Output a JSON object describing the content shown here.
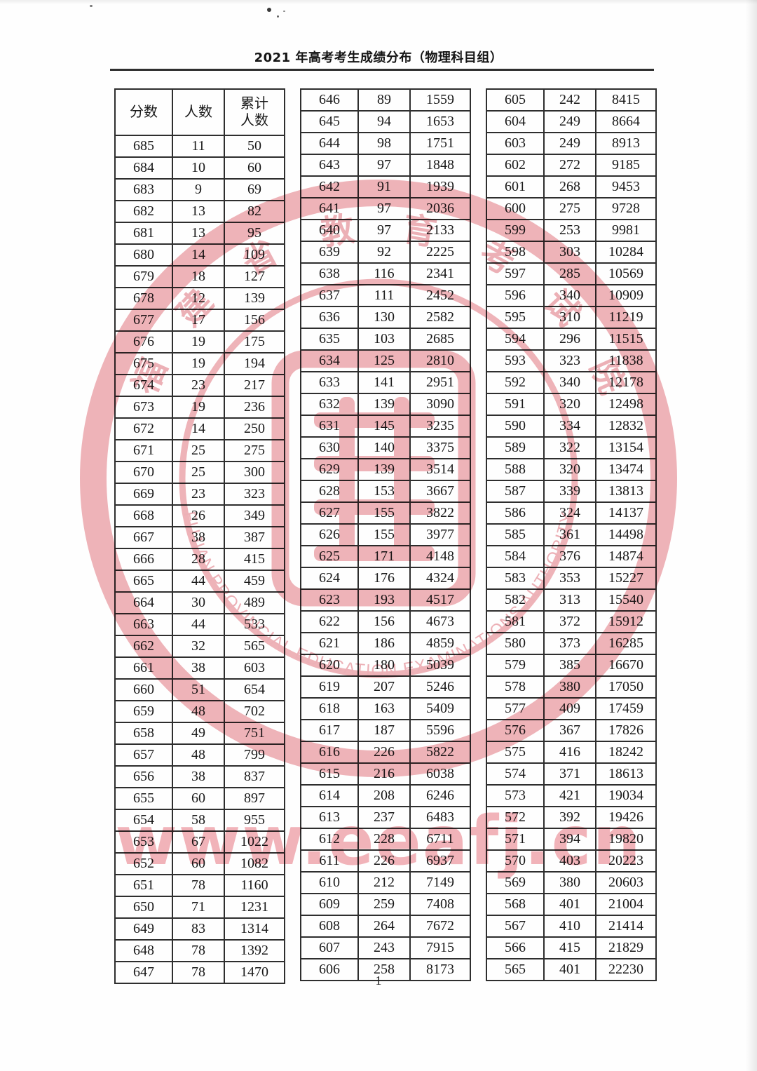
{
  "document": {
    "title": "2021 年高考考生成绩分布（物理科目组）",
    "page_number": "1",
    "watermark": {
      "seal_chinese": "福建省教育考试院",
      "seal_english": "FUJIAN PROVINCIAL EDUCATION EXAMINATIONS AUTHORITY",
      "url_text": "www.eeafj.cn",
      "seal_color": "#edaab0",
      "url_color": "#ee9aa3"
    }
  },
  "table_headers": [
    "分数",
    "人数",
    "累计\n人数"
  ],
  "tables": [
    {
      "rows": [
        [
          685,
          11,
          50
        ],
        [
          684,
          10,
          60
        ],
        [
          683,
          9,
          69
        ],
        [
          682,
          13,
          82
        ],
        [
          681,
          13,
          95
        ],
        [
          680,
          14,
          109
        ],
        [
          679,
          18,
          127
        ],
        [
          678,
          12,
          139
        ],
        [
          677,
          17,
          156
        ],
        [
          676,
          19,
          175
        ],
        [
          675,
          19,
          194
        ],
        [
          674,
          23,
          217
        ],
        [
          673,
          19,
          236
        ],
        [
          672,
          14,
          250
        ],
        [
          671,
          25,
          275
        ],
        [
          670,
          25,
          300
        ],
        [
          669,
          23,
          323
        ],
        [
          668,
          26,
          349
        ],
        [
          667,
          38,
          387
        ],
        [
          666,
          28,
          415
        ],
        [
          665,
          44,
          459
        ],
        [
          664,
          30,
          489
        ],
        [
          663,
          44,
          533
        ],
        [
          662,
          32,
          565
        ],
        [
          661,
          38,
          603
        ],
        [
          660,
          51,
          654
        ],
        [
          659,
          48,
          702
        ],
        [
          658,
          49,
          751
        ],
        [
          657,
          48,
          799
        ],
        [
          656,
          38,
          837
        ],
        [
          655,
          60,
          897
        ],
        [
          654,
          58,
          955
        ],
        [
          653,
          67,
          1022
        ],
        [
          652,
          60,
          1082
        ],
        [
          651,
          78,
          1160
        ],
        [
          650,
          71,
          1231
        ],
        [
          649,
          83,
          1314
        ],
        [
          648,
          78,
          1392
        ],
        [
          647,
          78,
          1470
        ]
      ]
    },
    {
      "rows": [
        [
          646,
          89,
          1559
        ],
        [
          645,
          94,
          1653
        ],
        [
          644,
          98,
          1751
        ],
        [
          643,
          97,
          1848
        ],
        [
          642,
          91,
          1939
        ],
        [
          641,
          97,
          2036
        ],
        [
          640,
          97,
          2133
        ],
        [
          639,
          92,
          2225
        ],
        [
          638,
          116,
          2341
        ],
        [
          637,
          111,
          2452
        ],
        [
          636,
          130,
          2582
        ],
        [
          635,
          103,
          2685
        ],
        [
          634,
          125,
          2810
        ],
        [
          633,
          141,
          2951
        ],
        [
          632,
          139,
          3090
        ],
        [
          631,
          145,
          3235
        ],
        [
          630,
          140,
          3375
        ],
        [
          629,
          139,
          3514
        ],
        [
          628,
          153,
          3667
        ],
        [
          627,
          155,
          3822
        ],
        [
          626,
          155,
          3977
        ],
        [
          625,
          171,
          4148
        ],
        [
          624,
          176,
          4324
        ],
        [
          623,
          193,
          4517
        ],
        [
          622,
          156,
          4673
        ],
        [
          621,
          186,
          4859
        ],
        [
          620,
          180,
          5039
        ],
        [
          619,
          207,
          5246
        ],
        [
          618,
          163,
          5409
        ],
        [
          617,
          187,
          5596
        ],
        [
          616,
          226,
          5822
        ],
        [
          615,
          216,
          6038
        ],
        [
          614,
          208,
          6246
        ],
        [
          613,
          237,
          6483
        ],
        [
          612,
          228,
          6711
        ],
        [
          611,
          226,
          6937
        ],
        [
          610,
          212,
          7149
        ],
        [
          609,
          259,
          7408
        ],
        [
          608,
          264,
          7672
        ],
        [
          607,
          243,
          7915
        ],
        [
          606,
          258,
          8173
        ]
      ]
    },
    {
      "rows": [
        [
          605,
          242,
          8415
        ],
        [
          604,
          249,
          8664
        ],
        [
          603,
          249,
          8913
        ],
        [
          602,
          272,
          9185
        ],
        [
          601,
          268,
          9453
        ],
        [
          600,
          275,
          9728
        ],
        [
          599,
          253,
          9981
        ],
        [
          598,
          303,
          10284
        ],
        [
          597,
          285,
          10569
        ],
        [
          596,
          340,
          10909
        ],
        [
          595,
          310,
          11219
        ],
        [
          594,
          296,
          11515
        ],
        [
          593,
          323,
          11838
        ],
        [
          592,
          340,
          12178
        ],
        [
          591,
          320,
          12498
        ],
        [
          590,
          334,
          12832
        ],
        [
          589,
          322,
          13154
        ],
        [
          588,
          320,
          13474
        ],
        [
          587,
          339,
          13813
        ],
        [
          586,
          324,
          14137
        ],
        [
          585,
          361,
          14498
        ],
        [
          584,
          376,
          14874
        ],
        [
          583,
          353,
          15227
        ],
        [
          582,
          313,
          15540
        ],
        [
          581,
          372,
          15912
        ],
        [
          580,
          373,
          16285
        ],
        [
          579,
          385,
          16670
        ],
        [
          578,
          380,
          17050
        ],
        [
          577,
          409,
          17459
        ],
        [
          576,
          367,
          17826
        ],
        [
          575,
          416,
          18242
        ],
        [
          574,
          371,
          18613
        ],
        [
          573,
          421,
          19034
        ],
        [
          572,
          392,
          19426
        ],
        [
          571,
          394,
          19820
        ],
        [
          570,
          403,
          20223
        ],
        [
          569,
          380,
          20603
        ],
        [
          568,
          401,
          21004
        ],
        [
          567,
          410,
          21414
        ],
        [
          566,
          415,
          21829
        ],
        [
          565,
          401,
          22230
        ]
      ]
    }
  ]
}
